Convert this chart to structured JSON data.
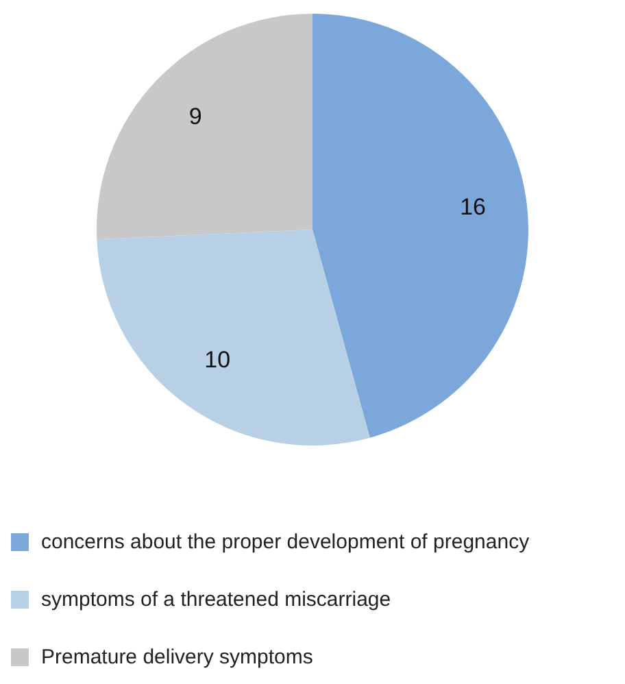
{
  "chart_data": {
    "type": "pie",
    "categories": [
      "concerns about the proper development of pregnancy",
      "symptoms of a threatened miscarriage",
      "Premature delivery symptoms"
    ],
    "values": [
      16,
      10,
      9
    ],
    "colors": [
      "#7ba7da",
      "#b8d0e6",
      "#c8c8c8"
    ],
    "data_labels": true,
    "legend": "bottom"
  }
}
